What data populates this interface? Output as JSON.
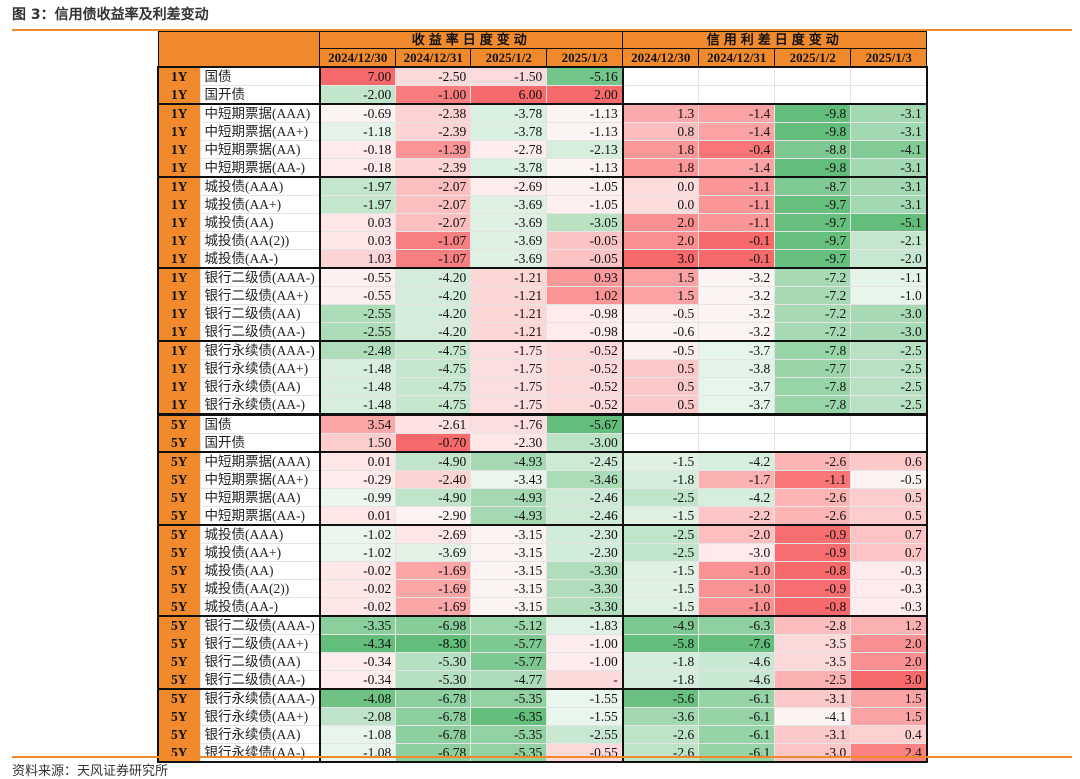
{
  "title": "图 3：信用债收益率及利差变动",
  "source": "资料来源：天风证券研究所",
  "colors": {
    "accent": "#F08A2C",
    "red": "#F8696B",
    "green": "#63BE7B",
    "neutral": "#FFFFFF"
  },
  "headers": {
    "yield_group": "收益率日度变动",
    "spread_group": "信用利差日度变动",
    "yield_dates": [
      "2024/12/30",
      "2024/12/31",
      "2025/1/2",
      "2025/1/3"
    ],
    "spread_dates": [
      "2024/12/30",
      "2024/12/31",
      "2025/1/2",
      "2025/1/3"
    ]
  },
  "rows": [
    {
      "term": "1Y",
      "name": "国债",
      "yield": [
        "7.00",
        "-2.50",
        "-1.50",
        "-5.16"
      ],
      "spread": [
        "",
        "",
        "",
        ""
      ]
    },
    {
      "term": "1Y",
      "name": "国开债",
      "yield": [
        "-2.00",
        "-1.00",
        "6.00",
        "2.00"
      ],
      "spread": [
        "",
        "",
        "",
        ""
      ]
    },
    {
      "term": "1Y",
      "name": "中短期票据(AAA)",
      "yield": [
        "-0.69",
        "-2.38",
        "-3.78",
        "-1.13"
      ],
      "spread": [
        "1.3",
        "-1.4",
        "-9.8",
        "-3.1"
      ]
    },
    {
      "term": "1Y",
      "name": "中短期票据(AA+)",
      "yield": [
        "-1.18",
        "-2.39",
        "-3.78",
        "-1.13"
      ],
      "spread": [
        "0.8",
        "-1.4",
        "-9.8",
        "-3.1"
      ]
    },
    {
      "term": "1Y",
      "name": "中短期票据(AA)",
      "yield": [
        "-0.18",
        "-1.39",
        "-2.78",
        "-2.13"
      ],
      "spread": [
        "1.8",
        "-0.4",
        "-8.8",
        "-4.1"
      ]
    },
    {
      "term": "1Y",
      "name": "中短期票据(AA-)",
      "yield": [
        "-0.18",
        "-2.39",
        "-3.78",
        "-1.13"
      ],
      "spread": [
        "1.8",
        "-1.4",
        "-9.8",
        "-3.1"
      ]
    },
    {
      "term": "1Y",
      "name": "城投债(AAA)",
      "yield": [
        "-1.97",
        "-2.07",
        "-2.69",
        "-1.05"
      ],
      "spread": [
        "0.0",
        "-1.1",
        "-8.7",
        "-3.1"
      ]
    },
    {
      "term": "1Y",
      "name": "城投债(AA+)",
      "yield": [
        "-1.97",
        "-2.07",
        "-3.69",
        "-1.05"
      ],
      "spread": [
        "0.0",
        "-1.1",
        "-9.7",
        "-3.1"
      ]
    },
    {
      "term": "1Y",
      "name": "城投债(AA)",
      "yield": [
        "0.03",
        "-2.07",
        "-3.69",
        "-3.05"
      ],
      "spread": [
        "2.0",
        "-1.1",
        "-9.7",
        "-5.1"
      ]
    },
    {
      "term": "1Y",
      "name": "城投债(AA(2))",
      "yield": [
        "0.03",
        "-1.07",
        "-3.69",
        "-0.05"
      ],
      "spread": [
        "2.0",
        "-0.1",
        "-9.7",
        "-2.1"
      ]
    },
    {
      "term": "1Y",
      "name": "城投债(AA-)",
      "yield": [
        "1.03",
        "-1.07",
        "-3.69",
        "-0.05"
      ],
      "spread": [
        "3.0",
        "-0.1",
        "-9.7",
        "-2.0"
      ]
    },
    {
      "term": "1Y",
      "name": "银行二级债(AAA-)",
      "yield": [
        "-0.55",
        "-4.20",
        "-1.21",
        "0.93"
      ],
      "spread": [
        "1.5",
        "-3.2",
        "-7.2",
        "-1.1"
      ]
    },
    {
      "term": "1Y",
      "name": "银行二级债(AA+)",
      "yield": [
        "-0.55",
        "-4.20",
        "-1.21",
        "1.02"
      ],
      "spread": [
        "1.5",
        "-3.2",
        "-7.2",
        "-1.0"
      ]
    },
    {
      "term": "1Y",
      "name": "银行二级债(AA)",
      "yield": [
        "-2.55",
        "-4.20",
        "-1.21",
        "-0.98"
      ],
      "spread": [
        "-0.5",
        "-3.2",
        "-7.2",
        "-3.0"
      ]
    },
    {
      "term": "1Y",
      "name": "银行二级债(AA-)",
      "yield": [
        "-2.55",
        "-4.20",
        "-1.21",
        "-0.98"
      ],
      "spread": [
        "-0.6",
        "-3.2",
        "-7.2",
        "-3.0"
      ]
    },
    {
      "term": "1Y",
      "name": "银行永续债(AAA-)",
      "yield": [
        "-2.48",
        "-4.75",
        "-1.75",
        "-0.52"
      ],
      "spread": [
        "-0.5",
        "-3.7",
        "-7.8",
        "-2.5"
      ]
    },
    {
      "term": "1Y",
      "name": "银行永续债(AA+)",
      "yield": [
        "-1.48",
        "-4.75",
        "-1.75",
        "-0.52"
      ],
      "spread": [
        "0.5",
        "-3.8",
        "-7.7",
        "-2.5"
      ]
    },
    {
      "term": "1Y",
      "name": "银行永续债(AA)",
      "yield": [
        "-1.48",
        "-4.75",
        "-1.75",
        "-0.52"
      ],
      "spread": [
        "0.5",
        "-3.7",
        "-7.8",
        "-2.5"
      ]
    },
    {
      "term": "1Y",
      "name": "银行永续债(AA-)",
      "yield": [
        "-1.48",
        "-4.75",
        "-1.75",
        "-0.52"
      ],
      "spread": [
        "0.5",
        "-3.7",
        "-7.8",
        "-2.5"
      ]
    },
    {
      "term": "5Y",
      "name": "国债",
      "yield": [
        "3.54",
        "-2.61",
        "-1.76",
        "-5.67"
      ],
      "spread": [
        "",
        "",
        "",
        ""
      ]
    },
    {
      "term": "5Y",
      "name": "国开债",
      "yield": [
        "1.50",
        "-0.70",
        "-2.30",
        "-3.00"
      ],
      "spread": [
        "",
        "",
        "",
        ""
      ]
    },
    {
      "term": "5Y",
      "name": "中短期票据(AAA)",
      "yield": [
        "0.01",
        "-4.90",
        "-4.93",
        "-2.45"
      ],
      "spread": [
        "-1.5",
        "-4.2",
        "-2.6",
        "0.6"
      ]
    },
    {
      "term": "5Y",
      "name": "中短期票据(AA+)",
      "yield": [
        "-0.29",
        "-2.40",
        "-3.43",
        "-3.46"
      ],
      "spread": [
        "-1.8",
        "-1.7",
        "-1.1",
        "-0.5"
      ]
    },
    {
      "term": "5Y",
      "name": "中短期票据(AA)",
      "yield": [
        "-0.99",
        "-4.90",
        "-4.93",
        "-2.46"
      ],
      "spread": [
        "-2.5",
        "-4.2",
        "-2.6",
        "0.5"
      ]
    },
    {
      "term": "5Y",
      "name": "中短期票据(AA-)",
      "yield": [
        "0.01",
        "-2.90",
        "-4.93",
        "-2.46"
      ],
      "spread": [
        "-1.5",
        "-2.2",
        "-2.6",
        "0.5"
      ]
    },
    {
      "term": "5Y",
      "name": "城投债(AAA)",
      "yield": [
        "-1.02",
        "-2.69",
        "-3.15",
        "-2.30"
      ],
      "spread": [
        "-2.5",
        "-2.0",
        "-0.9",
        "0.7"
      ]
    },
    {
      "term": "5Y",
      "name": "城投债(AA+)",
      "yield": [
        "-1.02",
        "-3.69",
        "-3.15",
        "-2.30"
      ],
      "spread": [
        "-2.5",
        "-3.0",
        "-0.9",
        "0.7"
      ]
    },
    {
      "term": "5Y",
      "name": "城投债(AA)",
      "yield": [
        "-0.02",
        "-1.69",
        "-3.15",
        "-3.30"
      ],
      "spread": [
        "-1.5",
        "-1.0",
        "-0.8",
        "-0.3"
      ]
    },
    {
      "term": "5Y",
      "name": "城投债(AA(2))",
      "yield": [
        "-0.02",
        "-1.69",
        "-3.15",
        "-3.30"
      ],
      "spread": [
        "-1.5",
        "-1.0",
        "-0.9",
        "-0.3"
      ]
    },
    {
      "term": "5Y",
      "name": "城投债(AA-)",
      "yield": [
        "-0.02",
        "-1.69",
        "-3.15",
        "-3.30"
      ],
      "spread": [
        "-1.5",
        "-1.0",
        "-0.8",
        "-0.3"
      ]
    },
    {
      "term": "5Y",
      "name": "银行二级债(AAA-)",
      "yield": [
        "-3.35",
        "-6.98",
        "-5.12",
        "-1.83"
      ],
      "spread": [
        "-4.9",
        "-6.3",
        "-2.8",
        "1.2"
      ]
    },
    {
      "term": "5Y",
      "name": "银行二级债(AA+)",
      "yield": [
        "-4.34",
        "-8.30",
        "-5.77",
        "-1.00"
      ],
      "spread": [
        "-5.8",
        "-7.6",
        "-3.5",
        "2.0"
      ]
    },
    {
      "term": "5Y",
      "name": "银行二级债(AA)",
      "yield": [
        "-0.34",
        "-5.30",
        "-5.77",
        "-1.00"
      ],
      "spread": [
        "-1.8",
        "-4.6",
        "-3.5",
        "2.0"
      ]
    },
    {
      "term": "5Y",
      "name": "银行二级债(AA-)",
      "yield": [
        "-0.34",
        "-5.30",
        "-4.77",
        "-"
      ],
      "spread": [
        "-1.8",
        "-4.6",
        "-2.5",
        "3.0"
      ]
    },
    {
      "term": "5Y",
      "name": "银行永续债(AAA-)",
      "yield": [
        "-4.08",
        "-6.78",
        "-5.35",
        "-1.55"
      ],
      "spread": [
        "-5.6",
        "-6.1",
        "-3.1",
        "1.5"
      ]
    },
    {
      "term": "5Y",
      "name": "银行永续债(AA+)",
      "yield": [
        "-2.08",
        "-6.78",
        "-6.35",
        "-1.55"
      ],
      "spread": [
        "-3.6",
        "-6.1",
        "-4.1",
        "1.5"
      ]
    },
    {
      "term": "5Y",
      "name": "银行永续债(AA)",
      "yield": [
        "-1.08",
        "-6.78",
        "-5.35",
        "-2.55"
      ],
      "spread": [
        "-2.6",
        "-6.1",
        "-3.1",
        "0.4"
      ]
    },
    {
      "term": "5Y",
      "name": "银行永续债(AA-)",
      "yield": [
        "-1.08",
        "-6.78",
        "-5.35",
        "-0.55"
      ],
      "spread": [
        "-2.6",
        "-6.1",
        "-3.0",
        "2.4"
      ]
    }
  ]
}
